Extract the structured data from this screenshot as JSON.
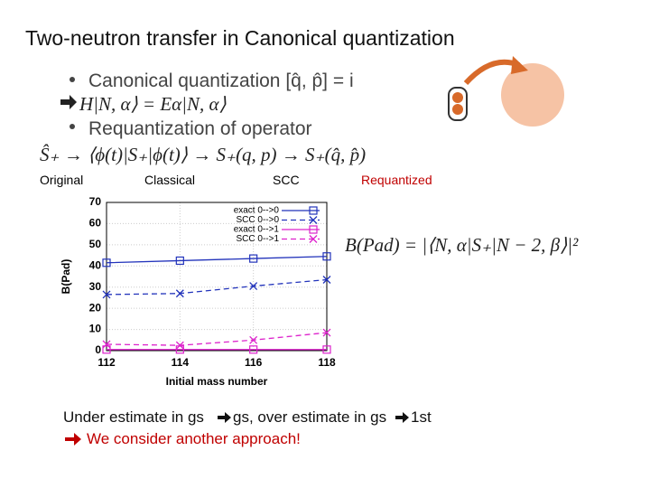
{
  "slide": {
    "title": "Two-neutron transfer in Canonical quantization",
    "bullet_1": "Canonical quantization [q̂, p̂] = i",
    "line_2": "H|N, α⟩ = Eα|N, α⟩",
    "bullet_3": "Requantization of operator",
    "line_4": "Ŝ₊ → ⟨ϕ(t)|S₊|ϕ(t)⟩ → S₊(q, p) → S₊(q̂, p̂)",
    "stages": [
      "Original",
      "Classical",
      "SCC",
      "Requantized"
    ],
    "formula": "B(Pad) = |⟨N, α|S₊|N − 2, β⟩|²",
    "note_parts": [
      "Under estimate in gs",
      "gs, over estimate in gs",
      "1st"
    ],
    "conclusion": "We consider another approach!"
  },
  "chart_data": {
    "type": "line",
    "x_label": "Initial mass number",
    "y_label": "B(Pad)",
    "x": [
      112,
      114,
      116,
      118
    ],
    "series": [
      {
        "name": "exact 0-->0",
        "color": "#2233bb",
        "dash": false,
        "marker": "square",
        "values": [
          41.5,
          42.5,
          43.5,
          44.5
        ]
      },
      {
        "name": "SCC 0-->0",
        "color": "#2233bb",
        "dash": true,
        "marker": "cross",
        "values": [
          26.5,
          27,
          30.5,
          33.5
        ]
      },
      {
        "name": "exact 0-->1",
        "color": "#dd22cc",
        "dash": false,
        "marker": "square",
        "values": [
          0.5,
          0.5,
          0.5,
          0.5
        ]
      },
      {
        "name": "SCC 0-->1",
        "color": "#dd22cc",
        "dash": true,
        "marker": "cross",
        "values": [
          3,
          2.5,
          5,
          8.5
        ]
      }
    ],
    "xlim": [
      112,
      118
    ],
    "xticks": [
      112,
      114,
      116,
      118
    ],
    "ylim": [
      0,
      70
    ],
    "yticks": [
      0,
      10,
      20,
      30,
      40,
      50,
      60,
      70
    ],
    "grid": true,
    "legend": "top-right"
  }
}
